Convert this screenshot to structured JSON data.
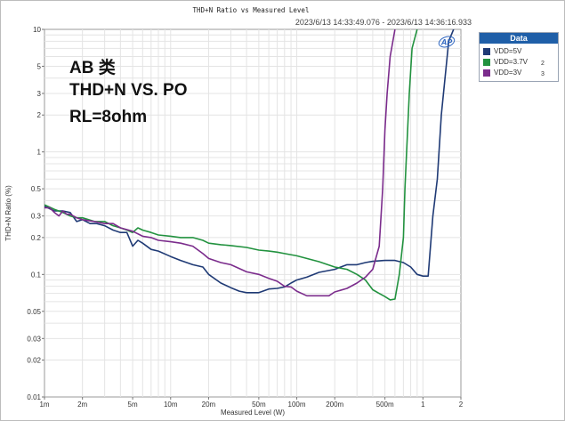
{
  "chart_data": {
    "type": "line",
    "title": "THD+N Ratio vs Measured Level",
    "subtitle": "2023/6/13 14:33:49.076 - 2023/6/13 14:36:16.933",
    "xlabel": "Measured Level (W)",
    "ylabel": "THD+N Ratio (%)",
    "xscale": "log",
    "yscale": "log",
    "xlim": [
      0.001,
      2
    ],
    "ylim": [
      0.01,
      10
    ],
    "xticks": [
      {
        "v": 0.001,
        "label": "1m"
      },
      {
        "v": 0.002,
        "label": "2m"
      },
      {
        "v": 0.005,
        "label": "5m"
      },
      {
        "v": 0.01,
        "label": "10m"
      },
      {
        "v": 0.02,
        "label": "20m"
      },
      {
        "v": 0.05,
        "label": "50m"
      },
      {
        "v": 0.1,
        "label": "100m"
      },
      {
        "v": 0.2,
        "label": "200m"
      },
      {
        "v": 0.5,
        "label": "500m"
      },
      {
        "v": 1,
        "label": "1"
      },
      {
        "v": 2,
        "label": "2"
      }
    ],
    "yticks": [
      {
        "v": 10,
        "label": "10"
      },
      {
        "v": 5,
        "label": "5"
      },
      {
        "v": 3,
        "label": "3"
      },
      {
        "v": 2,
        "label": "2"
      },
      {
        "v": 1,
        "label": "1"
      },
      {
        "v": 0.5,
        "label": "0.5"
      },
      {
        "v": 0.3,
        "label": "0.3"
      },
      {
        "v": 0.2,
        "label": "0.2"
      },
      {
        "v": 0.1,
        "label": "0.1"
      },
      {
        "v": 0.05,
        "label": "0.05"
      },
      {
        "v": 0.03,
        "label": "0.03"
      },
      {
        "v": 0.02,
        "label": "0.02"
      },
      {
        "v": 0.01,
        "label": "0.01"
      }
    ],
    "grid": true,
    "legend_position": "right",
    "series": [
      {
        "name": "VDD=5V",
        "color": "#1f3a75",
        "points": [
          [
            0.001,
            0.36
          ],
          [
            0.0012,
            0.33
          ],
          [
            0.0014,
            0.33
          ],
          [
            0.0016,
            0.32
          ],
          [
            0.0018,
            0.27
          ],
          [
            0.002,
            0.28
          ],
          [
            0.0023,
            0.26
          ],
          [
            0.0026,
            0.26
          ],
          [
            0.003,
            0.25
          ],
          [
            0.0035,
            0.23
          ],
          [
            0.004,
            0.22
          ],
          [
            0.0045,
            0.22
          ],
          [
            0.005,
            0.17
          ],
          [
            0.0055,
            0.19
          ],
          [
            0.006,
            0.18
          ],
          [
            0.007,
            0.16
          ],
          [
            0.008,
            0.155
          ],
          [
            0.01,
            0.14
          ],
          [
            0.012,
            0.13
          ],
          [
            0.015,
            0.12
          ],
          [
            0.018,
            0.115
          ],
          [
            0.02,
            0.1
          ],
          [
            0.025,
            0.085
          ],
          [
            0.03,
            0.078
          ],
          [
            0.035,
            0.073
          ],
          [
            0.04,
            0.071
          ],
          [
            0.045,
            0.071
          ],
          [
            0.05,
            0.071
          ],
          [
            0.06,
            0.076
          ],
          [
            0.07,
            0.077
          ],
          [
            0.08,
            0.079
          ],
          [
            0.09,
            0.085
          ],
          [
            0.1,
            0.09
          ],
          [
            0.12,
            0.095
          ],
          [
            0.15,
            0.104
          ],
          [
            0.2,
            0.11
          ],
          [
            0.25,
            0.12
          ],
          [
            0.3,
            0.12
          ],
          [
            0.35,
            0.125
          ],
          [
            0.4,
            0.128
          ],
          [
            0.5,
            0.13
          ],
          [
            0.6,
            0.13
          ],
          [
            0.7,
            0.125
          ],
          [
            0.8,
            0.115
          ],
          [
            0.9,
            0.1
          ],
          [
            1.0,
            0.097
          ],
          [
            1.1,
            0.097
          ],
          [
            1.2,
            0.3
          ],
          [
            1.3,
            0.6
          ],
          [
            1.4,
            2.0
          ],
          [
            1.6,
            8.0
          ],
          [
            1.75,
            10.0
          ]
        ]
      },
      {
        "name": "VDD=3.7V",
        "color": "#22923f",
        "points": [
          [
            0.001,
            0.37
          ],
          [
            0.0012,
            0.34
          ],
          [
            0.0014,
            0.32
          ],
          [
            0.0016,
            0.3
          ],
          [
            0.0018,
            0.29
          ],
          [
            0.002,
            0.29
          ],
          [
            0.0025,
            0.27
          ],
          [
            0.003,
            0.27
          ],
          [
            0.0035,
            0.25
          ],
          [
            0.004,
            0.24
          ],
          [
            0.0045,
            0.23
          ],
          [
            0.005,
            0.22
          ],
          [
            0.0055,
            0.24
          ],
          [
            0.006,
            0.23
          ],
          [
            0.007,
            0.22
          ],
          [
            0.008,
            0.21
          ],
          [
            0.01,
            0.205
          ],
          [
            0.012,
            0.2
          ],
          [
            0.015,
            0.2
          ],
          [
            0.018,
            0.19
          ],
          [
            0.02,
            0.18
          ],
          [
            0.025,
            0.175
          ],
          [
            0.03,
            0.172
          ],
          [
            0.04,
            0.166
          ],
          [
            0.05,
            0.158
          ],
          [
            0.06,
            0.155
          ],
          [
            0.07,
            0.152
          ],
          [
            0.08,
            0.148
          ],
          [
            0.1,
            0.142
          ],
          [
            0.12,
            0.135
          ],
          [
            0.15,
            0.127
          ],
          [
            0.2,
            0.115
          ],
          [
            0.25,
            0.11
          ],
          [
            0.3,
            0.1
          ],
          [
            0.35,
            0.09
          ],
          [
            0.4,
            0.075
          ],
          [
            0.45,
            0.07
          ],
          [
            0.5,
            0.066
          ],
          [
            0.55,
            0.062
          ],
          [
            0.6,
            0.063
          ],
          [
            0.65,
            0.1
          ],
          [
            0.7,
            0.2
          ],
          [
            0.72,
            0.5
          ],
          [
            0.78,
            3.0
          ],
          [
            0.82,
            7.0
          ],
          [
            0.9,
            10.0
          ]
        ]
      },
      {
        "name": "VDD=3V",
        "color": "#7b2c8c",
        "points": [
          [
            0.001,
            0.35
          ],
          [
            0.0011,
            0.35
          ],
          [
            0.0012,
            0.32
          ],
          [
            0.0013,
            0.3
          ],
          [
            0.0014,
            0.33
          ],
          [
            0.0015,
            0.31
          ],
          [
            0.0016,
            0.31
          ],
          [
            0.0018,
            0.29
          ],
          [
            0.002,
            0.28
          ],
          [
            0.0025,
            0.27
          ],
          [
            0.003,
            0.26
          ],
          [
            0.0035,
            0.26
          ],
          [
            0.004,
            0.24
          ],
          [
            0.005,
            0.225
          ],
          [
            0.006,
            0.205
          ],
          [
            0.007,
            0.2
          ],
          [
            0.008,
            0.19
          ],
          [
            0.01,
            0.185
          ],
          [
            0.012,
            0.18
          ],
          [
            0.015,
            0.17
          ],
          [
            0.018,
            0.148
          ],
          [
            0.02,
            0.135
          ],
          [
            0.025,
            0.125
          ],
          [
            0.03,
            0.12
          ],
          [
            0.04,
            0.105
          ],
          [
            0.05,
            0.1
          ],
          [
            0.06,
            0.093
          ],
          [
            0.07,
            0.088
          ],
          [
            0.08,
            0.08
          ],
          [
            0.09,
            0.079
          ],
          [
            0.1,
            0.073
          ],
          [
            0.12,
            0.067
          ],
          [
            0.15,
            0.067
          ],
          [
            0.18,
            0.067
          ],
          [
            0.2,
            0.072
          ],
          [
            0.25,
            0.077
          ],
          [
            0.3,
            0.085
          ],
          [
            0.35,
            0.095
          ],
          [
            0.4,
            0.11
          ],
          [
            0.45,
            0.17
          ],
          [
            0.48,
            0.5
          ],
          [
            0.5,
            1.5
          ],
          [
            0.52,
            3.0
          ],
          [
            0.55,
            6.0
          ],
          [
            0.6,
            10.0
          ]
        ]
      }
    ]
  },
  "annotations": [
    "AB 类",
    "THD+N VS. PO",
    "RL=8ohm"
  ],
  "legend": {
    "title": "Data",
    "items": [
      {
        "label": "VDD=5V",
        "number": "",
        "color": "#1f3a75"
      },
      {
        "label": "VDD=3.7V",
        "number": "2",
        "color": "#22923f"
      },
      {
        "label": "VDD=3V",
        "number": "3",
        "color": "#7b2c8c"
      }
    ]
  },
  "logo": "AP"
}
